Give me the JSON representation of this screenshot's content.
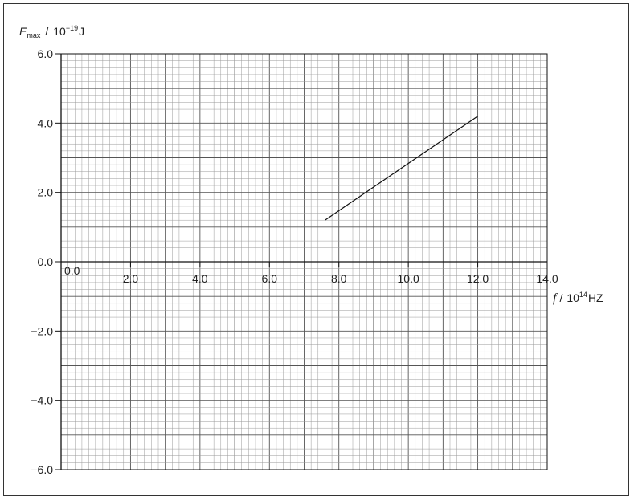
{
  "chart_data": {
    "type": "line",
    "title": "",
    "xlabel": {
      "symbol": "f",
      "separator": "/",
      "prefix": "10",
      "power": "14",
      "unit": "HZ"
    },
    "ylabel": {
      "symbol": "E",
      "subscript": "max",
      "separator": "/",
      "prefix": "10",
      "power": "−19",
      "unit": "J"
    },
    "xlim": [
      0,
      14
    ],
    "ylim": [
      -6,
      6
    ],
    "grid": true,
    "x_ticks": [
      0,
      2,
      4,
      6,
      8,
      10,
      12,
      14
    ],
    "x_tick_labels": [
      "0.0",
      "2.0",
      "4.0",
      "6.0",
      "8.0",
      "10.0",
      "12.0",
      "14.0"
    ],
    "y_ticks": [
      6,
      4,
      2,
      0,
      -2,
      -4,
      -6
    ],
    "y_tick_labels": [
      "6.0",
      "4.0",
      "2.0",
      "0.0",
      "−2.0",
      "−4.0",
      "−6.0"
    ],
    "series": [
      {
        "x": [
          7.6,
          12.0
        ],
        "y": [
          1.2,
          4.2
        ]
      }
    ],
    "colors": {
      "line": "#111111",
      "grid_minor": "#9a9a9a",
      "grid_major": "#555555",
      "axis": "#111111"
    }
  }
}
